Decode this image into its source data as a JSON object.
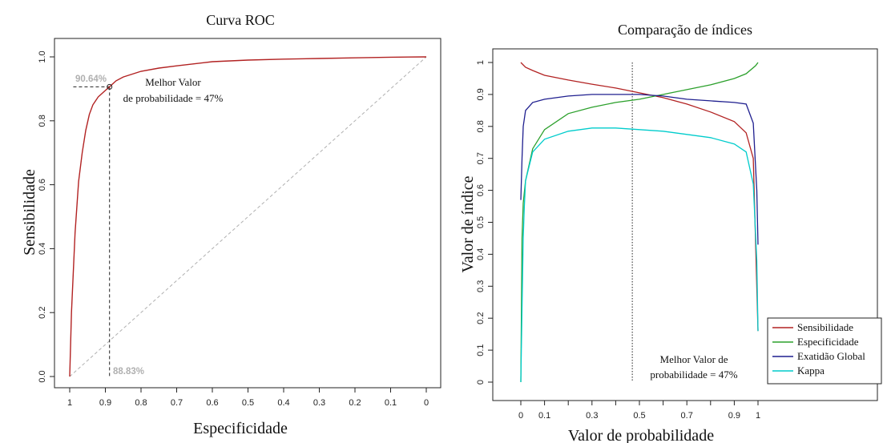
{
  "chart_data": [
    {
      "type": "line",
      "title": "Curva ROC",
      "xlabel": "Especificidade",
      "ylabel": "Sensibilidade",
      "xlim": [
        1,
        0
      ],
      "ylim": [
        0,
        1
      ],
      "x_ticks": [
        "1",
        "0.9",
        "0.8",
        "0.7",
        "0.6",
        "0.5",
        "0.4",
        "0.3",
        "0.2",
        "0.1",
        "0"
      ],
      "y_ticks": [
        "0.0",
        "0.2",
        "0.4",
        "0.6",
        "0.8",
        "1.0"
      ],
      "grid": false,
      "series": [
        {
          "color": "#b22222",
          "x": [
            1,
            0.995,
            0.985,
            0.975,
            0.965,
            0.955,
            0.945,
            0.935,
            0.92,
            0.9,
            0.8883,
            0.87,
            0.85,
            0.8,
            0.75,
            0.7,
            0.6,
            0.5,
            0.4,
            0.3,
            0.2,
            0.1,
            0
          ],
          "y": [
            0,
            0.2,
            0.45,
            0.61,
            0.7,
            0.77,
            0.82,
            0.85,
            0.875,
            0.895,
            0.9064,
            0.925,
            0.937,
            0.955,
            0.965,
            0.972,
            0.985,
            0.99,
            0.993,
            0.995,
            0.997,
            0.999,
            1.0
          ]
        }
      ],
      "reference_line": {
        "x": [
          1,
          0
        ],
        "y": [
          0,
          1
        ],
        "style": "dashed",
        "color": "#b0b0b0"
      },
      "best_point": {
        "x": 0.8883,
        "y": 0.9064
      },
      "annotations": {
        "sens_pct": "90.64%",
        "spec_pct": "88.83%",
        "best_label_1": "Melhor Valor",
        "best_label_2": "de probabilidade = 47%"
      }
    },
    {
      "type": "line",
      "title": "Comparação de índices",
      "xlabel": "Valor de probabilidade",
      "ylabel": "Valor de índice",
      "xlim": [
        0,
        1
      ],
      "ylim": [
        0,
        1
      ],
      "x_ticks": [
        "0",
        "0.1",
        "0.3",
        "0.5",
        "0.7",
        "0.9",
        "1"
      ],
      "y_ticks": [
        "0",
        "0.1",
        "0.2",
        "0.3",
        "0.4",
        "0.5",
        "0.6",
        "0.7",
        "0.8",
        "0.9",
        "1"
      ],
      "grid": false,
      "legend_position": "bottom-right",
      "best_probability": 0.47,
      "annotation_1": "Melhor Valor de",
      "annotation_2": "probabilidade = 47%",
      "series": [
        {
          "name": "Sensibilidade",
          "color": "#b22222",
          "x": [
            0,
            0.02,
            0.05,
            0.1,
            0.2,
            0.3,
            0.4,
            0.5,
            0.6,
            0.7,
            0.8,
            0.9,
            0.95,
            0.98,
            1.0
          ],
          "y": [
            1.0,
            0.985,
            0.975,
            0.96,
            0.945,
            0.932,
            0.92,
            0.905,
            0.89,
            0.87,
            0.845,
            0.815,
            0.78,
            0.7,
            0.16
          ]
        },
        {
          "name": "Especificidade",
          "color": "#2ca02c",
          "x": [
            0,
            0.005,
            0.01,
            0.02,
            0.05,
            0.1,
            0.2,
            0.3,
            0.4,
            0.5,
            0.6,
            0.7,
            0.8,
            0.9,
            0.95,
            0.99,
            1.0
          ],
          "y": [
            0.0,
            0.45,
            0.56,
            0.63,
            0.73,
            0.79,
            0.84,
            0.86,
            0.875,
            0.885,
            0.9,
            0.915,
            0.93,
            0.95,
            0.965,
            0.99,
            1.0
          ]
        },
        {
          "name": "Exatidão Global",
          "color": "#1f1f8f",
          "x": [
            0,
            0.005,
            0.01,
            0.02,
            0.05,
            0.1,
            0.2,
            0.3,
            0.4,
            0.5,
            0.6,
            0.7,
            0.8,
            0.9,
            0.95,
            0.98,
            0.995,
            1.0
          ],
          "y": [
            0.57,
            0.7,
            0.8,
            0.85,
            0.875,
            0.885,
            0.895,
            0.9,
            0.9,
            0.9,
            0.895,
            0.885,
            0.88,
            0.875,
            0.87,
            0.81,
            0.6,
            0.43
          ]
        },
        {
          "name": "Kappa",
          "color": "#00cccc",
          "x": [
            0,
            0.005,
            0.01,
            0.015,
            0.02,
            0.05,
            0.1,
            0.2,
            0.3,
            0.4,
            0.5,
            0.6,
            0.7,
            0.8,
            0.9,
            0.95,
            0.98,
            0.995,
            1.0
          ],
          "y": [
            0.0,
            0.23,
            0.45,
            0.55,
            0.63,
            0.72,
            0.76,
            0.785,
            0.795,
            0.795,
            0.79,
            0.785,
            0.775,
            0.765,
            0.745,
            0.72,
            0.62,
            0.38,
            0.16
          ]
        }
      ]
    }
  ]
}
